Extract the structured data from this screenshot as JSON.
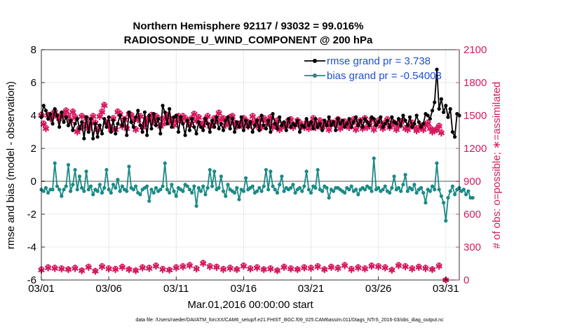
{
  "colors": {
    "rmse": "#000000",
    "bias": "#1a8a86",
    "obs": "#d6195f",
    "legend_text": "#1f4fd6",
    "grid": "#e2e2e2",
    "zero_line": "#aaaaaa"
  },
  "chart_data": {
    "type": "line",
    "title_line1": "Northern Hemisphere 92117 / 93032 = 99.016%",
    "title_line2": "RADIOSONDE_U_WIND_COMPONENT @ 200 hPa",
    "xlabel": "Mar.01,2016 00:00:00 start",
    "ylabel_left": "rmse and bias (model - observation)",
    "ylabel_right": "# of obs: o=possible; ∗=assimilated",
    "footnote": "data file: /Users/raeder/DAI/ATM_forcXX/CAM6_setup/f.e21.FHIST_BGC.f09_025.CAM6assim.011/Diags_NTrS_2016-03/obs_diag_output.nc",
    "x_ticklabels": [
      "03/01",
      "03/06",
      "03/11",
      "03/16",
      "03/21",
      "03/26",
      "03/31"
    ],
    "x_tick_days": [
      0,
      5,
      10,
      15,
      20,
      25,
      30
    ],
    "xlim_days": [
      0,
      31
    ],
    "ylim_left": [
      -6,
      8
    ],
    "y_ticks_left": [
      -6,
      -4,
      -2,
      0,
      2,
      4,
      6,
      8
    ],
    "ylim_right": [
      0,
      2100
    ],
    "y_ticks_right": [
      0,
      300,
      600,
      900,
      1200,
      1500,
      1800,
      2100
    ],
    "grid": true,
    "legend_position": "top-right",
    "series": [
      {
        "name": "rmse grand pr = 3.738",
        "axis": "left",
        "values": [
          3.9,
          4.6,
          4.3,
          3.8,
          4.1,
          3.5,
          4.4,
          4.0,
          3.3,
          4.2,
          3.6,
          3.9,
          3.4,
          3.7,
          3.1,
          3.5,
          3.8,
          3.2,
          3.6,
          2.6,
          3.9,
          3.0,
          3.8,
          2.6,
          3.5,
          2.7,
          3.4,
          2.9,
          3.8,
          3.3,
          3.9,
          3.0,
          3.7,
          2.9,
          3.5,
          4.0,
          3.4,
          3.8,
          2.8,
          4.2,
          3.6,
          3.3,
          3.9,
          4.3,
          3.4,
          3.0,
          4.2,
          2.8,
          4.0,
          3.2,
          4.1,
          3.4,
          3.8,
          2.9,
          4.6,
          4.2,
          3.5,
          4.4,
          3.3,
          3.9,
          4.0,
          3.0,
          3.9,
          3.5,
          2.8,
          3.7,
          3.1,
          3.8,
          3.3,
          2.9,
          3.6,
          3.3,
          3.1,
          3.8,
          3.5,
          3.0,
          3.7,
          3.3,
          3.9,
          3.2,
          3.5,
          3.1,
          3.7,
          3.9,
          3.2,
          3.8,
          3.0,
          3.6,
          3.3,
          3.9,
          3.1,
          3.7,
          3.3,
          3.6,
          3.0,
          3.4,
          3.7,
          3.1,
          4.0,
          3.4,
          3.2,
          3.7,
          3.0,
          4.1,
          3.5,
          3.2,
          3.9,
          3.4,
          3.6,
          3.1,
          3.8,
          3.3,
          3.5,
          3.4,
          3.7,
          3.0,
          3.4,
          3.3,
          3.8,
          3.4,
          3.6,
          3.2,
          3.8,
          3.3,
          3.5,
          3.1,
          3.7,
          3.4,
          3.9,
          3.4,
          3.6,
          3.1,
          3.8,
          3.5,
          3.7,
          3.3,
          3.5,
          3.8,
          3.3,
          3.6,
          3.9,
          3.4,
          3.7,
          3.3,
          3.8,
          3.6,
          3.4,
          3.9,
          3.8,
          3.4,
          3.6,
          3.9,
          3.3,
          3.5,
          3.7,
          3.3,
          3.9,
          3.6,
          3.5,
          3.8,
          3.4,
          4.0,
          3.7,
          3.4,
          3.9,
          3.3,
          3.5,
          4.0,
          3.6,
          3.3,
          3.5,
          4.1,
          4.0,
          3.8,
          4.3,
          4.8,
          6.8,
          4.4,
          5.0,
          4.2,
          4.6,
          3.9,
          4.4,
          3.0,
          2.7,
          4.1,
          4.0
        ],
        "step": 0.16667,
        "marker": "dot"
      },
      {
        "name": "bias grand pr = -0.54003",
        "axis": "left",
        "values": [
          -0.5,
          -0.6,
          -0.4,
          -0.7,
          -0.5,
          -0.5,
          1.1,
          -0.3,
          -0.5,
          -0.9,
          -0.5,
          -0.3,
          1.0,
          -0.6,
          -0.2,
          0.7,
          -0.5,
          0.3,
          -0.4,
          -0.6,
          0.6,
          -0.5,
          -0.3,
          -0.8,
          -0.5,
          -0.6,
          -0.2,
          -0.7,
          -0.4,
          0.7,
          -0.5,
          -0.7,
          -0.2,
          -0.4,
          0.1,
          -0.6,
          -0.3,
          -0.5,
          -0.6,
          0.9,
          -0.4,
          -0.5,
          -0.3,
          -0.7,
          -0.8,
          -0.5,
          -0.4,
          -0.3,
          -1.2,
          -0.5,
          -0.7,
          -0.4,
          -0.6,
          -0.5,
          -0.3,
          1.1,
          -0.5,
          -0.7,
          -0.2,
          -0.6,
          -0.9,
          -0.4,
          -0.5,
          -0.6,
          -0.2,
          -0.3,
          -0.5,
          -0.7,
          -0.3,
          -1.5,
          -0.4,
          -0.6,
          -0.3,
          -0.8,
          -0.4,
          0.7,
          -0.3,
          0.6,
          -0.5,
          -0.4,
          0.3,
          -0.6,
          -0.9,
          -0.2,
          -0.5,
          -0.6,
          -0.7,
          -0.4,
          -1.1,
          -0.5,
          -0.6,
          0.2,
          -0.5,
          -0.4,
          -0.3,
          -0.7,
          -0.6,
          -0.4,
          -0.6,
          -0.3,
          0.7,
          -0.5,
          0.6,
          -0.3,
          -0.5,
          -0.7,
          -0.2,
          0.3,
          -0.6,
          -0.4,
          -0.5,
          -0.4,
          -0.2,
          -0.7,
          -0.5,
          -0.4,
          -0.6,
          -0.3,
          0.6,
          -0.5,
          -0.7,
          -0.3,
          -0.4,
          0.7,
          -0.5,
          -0.6,
          -0.3,
          -0.4,
          -1.0,
          -0.5,
          -0.6,
          -0.4,
          -0.4,
          -0.5,
          -0.6,
          -0.7,
          -0.4,
          -0.5,
          -0.3,
          -0.6,
          -0.5,
          -0.8,
          -0.5,
          -0.4,
          -0.5,
          -0.3,
          -0.4,
          -0.6,
          1.4,
          -0.5,
          -0.4,
          -0.6,
          -0.5,
          -0.3,
          -0.6,
          -0.7,
          -0.4,
          0.3,
          -0.5,
          -0.4,
          -0.6,
          -0.2,
          0.4,
          -0.6,
          -0.4,
          -0.5,
          -0.2,
          -0.7,
          -0.5,
          -0.4,
          -0.7,
          -1.3,
          -0.5,
          -0.6,
          -0.3,
          -0.5,
          1.1,
          -0.5,
          -0.9,
          -1.3,
          -2.4,
          -1.0,
          -0.6,
          -0.3,
          -0.8,
          -0.5,
          -0.4,
          -0.6,
          -0.5,
          -0.8,
          -0.6,
          -1.0,
          -1.0
        ],
        "step": 0.16667,
        "marker": "dot"
      },
      {
        "name": "",
        "axis": "right",
        "role": "obs_possible",
        "values": [
          1510,
          1430,
          1390,
          1510,
          1480,
          1520,
          1540,
          1500,
          1480,
          1510,
          1520,
          1550,
          1500,
          1460,
          1540,
          1490,
          1360,
          1390,
          1500,
          1420,
          1480,
          1390,
          1440,
          1500,
          1440,
          1380,
          1500,
          1540,
          1600,
          1440,
          1410,
          1380,
          1480,
          1380,
          1540,
          1520,
          1410,
          1470,
          1390,
          1520,
          1510,
          1470,
          1380,
          1470,
          1500,
          1400,
          1430,
          1470,
          1480,
          1510,
          1450,
          1500,
          1480,
          1410,
          1430,
          1480,
          1510,
          1450,
          1470,
          1420,
          1460,
          1500,
          1470,
          1500,
          1480,
          1460,
          1420,
          1480,
          1520,
          1460,
          1490,
          1430,
          1420,
          1470,
          1500,
          1410,
          1430,
          1480,
          1460,
          1530,
          1470,
          1480,
          1420,
          1440,
          1490,
          1500,
          1440,
          1410,
          1430,
          1420,
          1480,
          1460,
          1410,
          1440,
          1500,
          1450,
          1410,
          1470,
          1400,
          1480,
          1460,
          1440,
          1490,
          1400,
          1420,
          1460,
          1380,
          1400,
          1430,
          1410,
          1460,
          1470,
          1400,
          1420,
          1460,
          1440,
          1410,
          1400,
          1440,
          1390,
          1430,
          1480,
          1400,
          1420,
          1460,
          1400,
          1420,
          1430,
          1380,
          1440,
          1440,
          1430,
          1470,
          1390,
          1410,
          1450,
          1420,
          1400,
          1440,
          1470,
          1380,
          1420,
          1460,
          1390,
          1480,
          1400,
          1420,
          1470,
          1380,
          1430,
          1460,
          1410,
          1390,
          1440,
          1470,
          1400,
          1420,
          1440,
          1380,
          1410,
          1450,
          1460,
          1390,
          1380,
          1410,
          1440,
          1400,
          1370,
          1390,
          1410,
          1380,
          1420,
          1440,
          1390,
          1360,
          1370,
          1380,
          1410,
          1350
        ],
        "step": 0.16667,
        "marker": "circle"
      },
      {
        "name": "",
        "axis": "right",
        "role": "obs_assimilated",
        "values": [
          1500,
          1420,
          1380,
          1500,
          1470,
          1510,
          1530,
          1490,
          1470,
          1500,
          1510,
          1540,
          1490,
          1450,
          1530,
          1480,
          1350,
          1380,
          1490,
          1410,
          1470,
          1380,
          1430,
          1490,
          1430,
          1370,
          1490,
          1530,
          1590,
          1430,
          1400,
          1370,
          1470,
          1370,
          1530,
          1510,
          1400,
          1460,
          1380,
          1510,
          1500,
          1460,
          1370,
          1460,
          1490,
          1390,
          1420,
          1460,
          1470,
          1500,
          1440,
          1490,
          1470,
          1400,
          1420,
          1470,
          1500,
          1440,
          1460,
          1410,
          1450,
          1490,
          1460,
          1490,
          1470,
          1450,
          1410,
          1470,
          1510,
          1450,
          1480,
          1420,
          1410,
          1460,
          1490,
          1400,
          1420,
          1470,
          1450,
          1520,
          1460,
          1470,
          1410,
          1430,
          1480,
          1490,
          1430,
          1400,
          1420,
          1410,
          1470,
          1450,
          1400,
          1430,
          1490,
          1440,
          1400,
          1460,
          1390,
          1470,
          1450,
          1430,
          1480,
          1390,
          1410,
          1450,
          1370,
          1390,
          1420,
          1400,
          1450,
          1460,
          1390,
          1410,
          1450,
          1430,
          1400,
          1390,
          1430,
          1380,
          1420,
          1470,
          1390,
          1410,
          1450,
          1390,
          1410,
          1420,
          1370,
          1430,
          1430,
          1420,
          1460,
          1380,
          1400,
          1440,
          1410,
          1390,
          1430,
          1460,
          1370,
          1410,
          1450,
          1380,
          1470,
          1390,
          1410,
          1460,
          1370,
          1420,
          1450,
          1400,
          1380,
          1430,
          1460,
          1390,
          1410,
          1430,
          1370,
          1400,
          1440,
          1450,
          1380,
          1370,
          1400,
          1430,
          1390,
          1360,
          1380,
          1400,
          1370,
          1410,
          1430,
          1380,
          1350,
          1360,
          1370,
          1400,
          1340
        ],
        "step": 0.16667,
        "marker": "star"
      },
      {
        "name": "",
        "axis": "right",
        "role": "obs_possible_low",
        "values": [
          100,
          120,
          115,
          110,
          100,
          115,
          90,
          125,
          85,
          130,
          110,
          105,
          125,
          100,
          90,
          120,
          115,
          135,
          105,
          95,
          120,
          130,
          140,
          110,
          160,
          130,
          125,
          105,
          115,
          100,
          135,
          110,
          120,
          100,
          110,
          90,
          125,
          110,
          100,
          120,
          115,
          130,
          100,
          125,
          115,
          140,
          105,
          120,
          110,
          135,
          130,
          120,
          95,
          140,
          130,
          110,
          125,
          115,
          100,
          135,
          0
        ],
        "step": 0.5,
        "marker": "circle"
      },
      {
        "name": "",
        "axis": "right",
        "role": "obs_assimilated_low",
        "values": [
          90,
          110,
          105,
          100,
          95,
          105,
          85,
          115,
          80,
          120,
          100,
          95,
          115,
          95,
          85,
          110,
          105,
          125,
          95,
          90,
          110,
          120,
          130,
          100,
          150,
          120,
          115,
          95,
          105,
          95,
          125,
          100,
          110,
          95,
          100,
          85,
          115,
          100,
          95,
          110,
          105,
          120,
          95,
          115,
          105,
          130,
          95,
          110,
          100,
          125,
          120,
          110,
          90,
          130,
          120,
          100,
          115,
          105,
          95,
          125,
          0
        ],
        "step": 0.5,
        "marker": "star"
      }
    ]
  }
}
